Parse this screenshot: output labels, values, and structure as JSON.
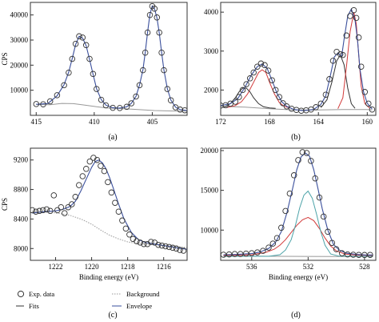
{
  "chart_data": [
    {
      "id": "a",
      "type": "line",
      "panel_label": "(a)",
      "ylabel": "CPS",
      "xlabel": "",
      "xlim": [
        415.5,
        402.0
      ],
      "ylim": [
        0,
        45000
      ],
      "x_reversed": true,
      "xticks": [
        415,
        410,
        405
      ],
      "yticks": [
        10000,
        20000,
        30000,
        40000
      ],
      "exp_x": [
        415,
        414.4,
        413.8,
        413.2,
        412.6,
        412.2,
        411.9,
        411.6,
        411.3,
        411.0,
        410.7,
        410.4,
        410.1,
        409.8,
        409.4,
        409.0,
        408.4,
        407.8,
        407.2,
        406.8,
        406.4,
        406.1,
        405.8,
        405.6,
        405.4,
        405.2,
        405.0,
        404.8,
        404.6,
        404.4,
        404.2,
        404.0,
        403.7,
        403.4,
        403.0,
        402.6,
        402.2
      ],
      "exp_y": [
        4500,
        4400,
        5600,
        8000,
        12000,
        17000,
        22500,
        28500,
        31500,
        31000,
        28000,
        22500,
        16500,
        10500,
        6200,
        4000,
        3000,
        2900,
        3400,
        4800,
        7500,
        12000,
        18000,
        25000,
        33000,
        40000,
        43500,
        42500,
        39000,
        33000,
        25000,
        18000,
        10500,
        6000,
        3200,
        2300,
        2000
      ],
      "fit_x": [
        415,
        414,
        413.2,
        412.6,
        412.2,
        411.9,
        411.6,
        411.3,
        411.0,
        410.7,
        410.4,
        410.1,
        409.8,
        409.4,
        409.0,
        408.4,
        407.8,
        407.2,
        406.8,
        406.4,
        406.1,
        405.8,
        405.6,
        405.4,
        405.2,
        405.0,
        404.8,
        404.6,
        404.4,
        404.2,
        404.0,
        403.7,
        403.4,
        403.0,
        402.6,
        402.0
      ],
      "fit_y": [
        4400,
        4700,
        7800,
        12200,
        17200,
        22600,
        28200,
        31500,
        30800,
        27800,
        22300,
        16300,
        10600,
        6300,
        4100,
        3000,
        2900,
        3400,
        4800,
        7600,
        12100,
        18200,
        25200,
        33200,
        40200,
        43600,
        42400,
        38800,
        32800,
        25100,
        18100,
        10600,
        6100,
        3300,
        2300,
        1900
      ],
      "bg_x": [
        415,
        413.8,
        412.8,
        411.8,
        410.8,
        409.8,
        408.8,
        407.8,
        406.8,
        405.8,
        404.8,
        403.8,
        402.8,
        402.0
      ],
      "bg_y": [
        4300,
        4250,
        4750,
        4650,
        4100,
        3400,
        2900,
        2700,
        2500,
        2200,
        1900,
        1800,
        1700,
        1650
      ]
    },
    {
      "id": "b",
      "type": "line",
      "panel_label": "(b)",
      "ylabel": "",
      "xlabel": "",
      "xlim": [
        172.0,
        159.3
      ],
      "ylim": [
        1350,
        4250
      ],
      "x_reversed": true,
      "xticks": [
        172,
        168,
        164,
        160
      ],
      "yticks": [
        2000,
        3000,
        4000
      ],
      "exp_x": [
        172.0,
        171.6,
        171.2,
        170.8,
        170.5,
        170.2,
        169.9,
        169.6,
        169.3,
        169.0,
        168.7,
        168.4,
        168.1,
        167.8,
        167.5,
        167.2,
        166.9,
        166.6,
        166.2,
        165.8,
        165.4,
        165.0,
        164.6,
        164.2,
        163.8,
        163.4,
        163.1,
        162.8,
        162.5,
        162.2,
        162.0,
        161.7,
        161.4,
        161.1,
        160.9,
        160.7,
        160.5,
        160.2,
        159.9,
        159.6
      ],
      "exp_y": [
        1600,
        1610,
        1650,
        1700,
        1820,
        2000,
        2150,
        2300,
        2450,
        2600,
        2680,
        2640,
        2500,
        2250,
        2000,
        1820,
        1660,
        1580,
        1520,
        1490,
        1470,
        1480,
        1500,
        1560,
        1650,
        1880,
        2280,
        2750,
        2980,
        2920,
        2900,
        3400,
        3900,
        4050,
        3850,
        3350,
        2600,
        1950,
        1650,
        1500
      ],
      "envelope_x": [
        172.0,
        171.2,
        170.6,
        170.0,
        169.5,
        169.0,
        168.6,
        168.2,
        167.8,
        167.4,
        167.0,
        166.6,
        166.0,
        165.2,
        164.4,
        163.8,
        163.4,
        163.0,
        162.7,
        162.4,
        162.1,
        161.9,
        161.6,
        161.3,
        161.0,
        160.8,
        160.6,
        160.3,
        160.0,
        159.6
      ],
      "envelope_y": [
        1600,
        1650,
        1780,
        2080,
        2380,
        2600,
        2670,
        2560,
        2250,
        1920,
        1700,
        1580,
        1500,
        1470,
        1500,
        1630,
        1850,
        2400,
        2850,
        2950,
        2850,
        3300,
        3900,
        4080,
        3800,
        3300,
        2550,
        1950,
        1660,
        1510
      ],
      "component_fits": [
        {
          "color": "#d23a3a",
          "x": [
            171.5,
            170.8,
            170.3,
            169.8,
            169.3,
            168.9,
            168.6,
            168.3,
            168.0,
            167.6,
            167.2,
            166.8,
            166.2
          ],
          "y": [
            1550,
            1600,
            1700,
            1900,
            2200,
            2450,
            2520,
            2450,
            2200,
            1900,
            1680,
            1580,
            1530
          ]
        },
        {
          "color": "#333333",
          "x": [
            171.8,
            171.2,
            170.8,
            170.5,
            170.2,
            169.9,
            169.6,
            169.3,
            168.9,
            168.5,
            168.0,
            167.5
          ],
          "y": [
            1550,
            1650,
            1800,
            1950,
            2050,
            2050,
            1950,
            1800,
            1650,
            1570,
            1540,
            1530
          ]
        },
        {
          "color": "#333333",
          "x": [
            163.8,
            163.3,
            162.9,
            162.5,
            162.2,
            161.9,
            161.6,
            161.3,
            161.0
          ],
          "y": [
            1550,
            1750,
            2200,
            2750,
            2900,
            2650,
            2050,
            1650,
            1530
          ]
        },
        {
          "color": "#d23a3a",
          "x": [
            162.4,
            162.0,
            161.7,
            161.4,
            161.1,
            160.9,
            160.7,
            160.5,
            160.2,
            159.8
          ],
          "y": [
            1520,
            1800,
            2600,
            3500,
            4000,
            3700,
            2900,
            2100,
            1650,
            1530
          ]
        }
      ],
      "bg_x": [
        172.0,
        170.0,
        168.0,
        166.0,
        164.0,
        162.0,
        160.0,
        159.6
      ],
      "bg_y": [
        1580,
        1560,
        1520,
        1490,
        1490,
        1500,
        1500,
        1490
      ]
    },
    {
      "id": "c",
      "type": "line",
      "panel_label": "(c)",
      "ylabel": "CPS",
      "xlabel": "Binding energy (eV)",
      "xlim": [
        1223.4,
        1214.7
      ],
      "ylim": [
        7840,
        9360
      ],
      "x_reversed": true,
      "xticks": [
        1222,
        1220,
        1218,
        1216
      ],
      "yticks": [
        8000,
        8400,
        8800,
        9200
      ],
      "exp_x": [
        1223.3,
        1223.1,
        1222.9,
        1222.7,
        1222.5,
        1222.3,
        1222.1,
        1221.9,
        1221.7,
        1221.5,
        1221.3,
        1221.1,
        1220.9,
        1220.7,
        1220.5,
        1220.3,
        1220.1,
        1219.9,
        1219.7,
        1219.5,
        1219.3,
        1219.1,
        1218.9,
        1218.7,
        1218.5,
        1218.3,
        1218.1,
        1217.9,
        1217.7,
        1217.5,
        1217.3,
        1217.1,
        1216.9,
        1216.7,
        1216.5,
        1216.3,
        1216.1,
        1215.9,
        1215.7,
        1215.5,
        1215.3,
        1215.1,
        1214.9
      ],
      "exp_y": [
        8520,
        8500,
        8510,
        8520,
        8530,
        8510,
        8720,
        8520,
        8560,
        8480,
        8560,
        8600,
        8700,
        8860,
        8980,
        9080,
        9180,
        9230,
        9200,
        9120,
        9050,
        8900,
        8760,
        8620,
        8500,
        8380,
        8270,
        8190,
        8130,
        8100,
        8080,
        8060,
        8060,
        8090,
        8080,
        8050,
        8040,
        8030,
        8020,
        8010,
        8000,
        7980,
        7970
      ],
      "fit_x": [
        1223.3,
        1222.6,
        1222.0,
        1221.6,
        1221.2,
        1220.9,
        1220.6,
        1220.3,
        1220.0,
        1219.8,
        1219.6,
        1219.4,
        1219.2,
        1219.0,
        1218.8,
        1218.5,
        1218.2,
        1217.8,
        1217.4,
        1217.0,
        1216.5,
        1216.0,
        1215.5,
        1215.0,
        1214.7
      ],
      "fit_y": [
        8480,
        8500,
        8510,
        8530,
        8570,
        8640,
        8780,
        8940,
        9100,
        9180,
        9200,
        9160,
        9080,
        8960,
        8820,
        8600,
        8400,
        8220,
        8120,
        8080,
        8060,
        8040,
        8020,
        8000,
        7990
      ],
      "bg_x": [
        1223.3,
        1222.2,
        1221.2,
        1220.5,
        1220.0,
        1219.5,
        1219.0,
        1218.5,
        1218.0,
        1217.5,
        1217.0,
        1216.5,
        1216.0,
        1215.0,
        1214.7
      ],
      "bg_y": [
        8500,
        8490,
        8450,
        8390,
        8330,
        8250,
        8180,
        8130,
        8090,
        8070,
        8060,
        8050,
        8040,
        8020,
        8010
      ]
    },
    {
      "id": "d",
      "type": "line",
      "panel_label": "(d)",
      "ylabel": "",
      "xlabel": "Binding energy (eV)",
      "xlim": [
        538.2,
        527.2
      ],
      "ylim": [
        6200,
        20300
      ],
      "x_reversed": true,
      "xticks": [
        536,
        532,
        528
      ],
      "yticks": [
        10000,
        15000,
        20000
      ],
      "exp_x": [
        538.0,
        537.6,
        537.2,
        536.8,
        536.4,
        536.0,
        535.6,
        535.2,
        534.8,
        534.5,
        534.2,
        533.9,
        533.6,
        533.3,
        533.0,
        532.7,
        532.4,
        532.1,
        531.8,
        531.5,
        531.2,
        530.9,
        530.6,
        530.3,
        530.0,
        529.6,
        529.2,
        528.8,
        528.4,
        528.0,
        527.6
      ],
      "exp_y": [
        6900,
        6950,
        7000,
        7000,
        7050,
        7100,
        7200,
        7400,
        7800,
        8300,
        9000,
        10300,
        12400,
        14600,
        16900,
        18800,
        19800,
        19700,
        18700,
        16500,
        14100,
        11700,
        9800,
        8400,
        7600,
        7100,
        6950,
        6900,
        6880,
        6870,
        6880
      ],
      "envelope_x": [
        538.0,
        537.0,
        536.0,
        535.4,
        534.8,
        534.3,
        533.9,
        533.5,
        533.1,
        532.8,
        532.5,
        532.2,
        531.9,
        531.6,
        531.3,
        531.0,
        530.6,
        530.2,
        529.8,
        529.3,
        528.6,
        528.0,
        527.4
      ],
      "envelope_y": [
        6900,
        6950,
        7050,
        7250,
        7700,
        8500,
        9800,
        12200,
        15200,
        17600,
        19200,
        19700,
        19300,
        17600,
        15200,
        12700,
        10000,
        8200,
        7500,
        7100,
        6950,
        6880,
        6870
      ],
      "component_fits": [
        {
          "color": "#d23a3a",
          "x": [
            538.0,
            536.0,
            535.0,
            534.4,
            534.0,
            533.6,
            533.2,
            532.8,
            532.4,
            532.0,
            531.6,
            531.2,
            530.8,
            530.4,
            530.0,
            529.4,
            528.6,
            527.4
          ],
          "y": [
            6800,
            6900,
            7200,
            7600,
            8100,
            8800,
            9700,
            10600,
            11300,
            11600,
            11200,
            10200,
            9000,
            8000,
            7400,
            7000,
            6850,
            6800
          ]
        },
        {
          "color": "#4ca3a8",
          "x": [
            538.0,
            534.8,
            534.0,
            533.6,
            533.2,
            532.9,
            532.6,
            532.3,
            532.0,
            531.7,
            531.4,
            531.1,
            530.8,
            530.4,
            529.8,
            527.4
          ],
          "y": [
            6700,
            6700,
            6900,
            7500,
            8800,
            10600,
            12800,
            14400,
            14900,
            14000,
            12000,
            9800,
            8100,
            7000,
            6720,
            6700
          ]
        }
      ],
      "bg_x": [
        538.0,
        534.0,
        530.0,
        527.4
      ],
      "bg_y": [
        6750,
        6700,
        6680,
        6670
      ]
    }
  ],
  "legend": {
    "exp_data": "Exp. data",
    "fits": "Fits",
    "background": "Background",
    "envelope": "Envelope"
  },
  "colors": {
    "marker_edge": "#333333",
    "fits": "#333333",
    "envelope": "#3a4f9c",
    "background": "#999999",
    "red_component": "#d23a3a",
    "teal_component": "#4ca3a8"
  }
}
